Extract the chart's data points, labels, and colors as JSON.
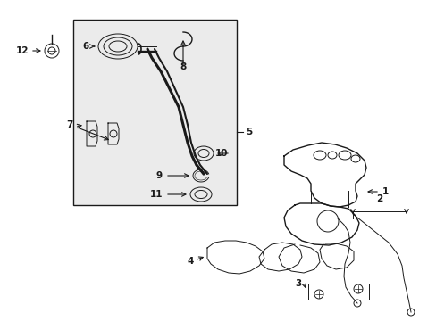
{
  "bg_color": "#ffffff",
  "line_color": "#1a1a1a",
  "box_bg": "#ebebeb",
  "fig_width": 4.89,
  "fig_height": 3.6,
  "dpi": 100
}
